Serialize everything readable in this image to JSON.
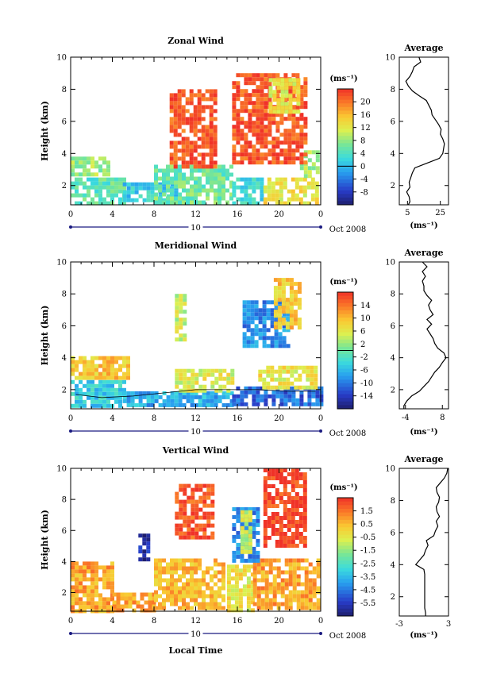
{
  "chart_data": [
    {
      "type": "heatmap",
      "title": "Zonal Wind",
      "ylabel": "Height (km)",
      "xticks": [
        "0",
        "4",
        "8",
        "12",
        "16",
        "20",
        "0"
      ],
      "xlim": [
        0,
        24
      ],
      "ylim": [
        0.8,
        10
      ],
      "yticks": [
        "2",
        "4",
        "6",
        "8",
        "10"
      ],
      "date_label": "10",
      "date_suffix": "Oct 2008",
      "colorbar": {
        "unit": "(ms⁻¹)",
        "ticks": [
          "20",
          "16",
          "12",
          "8",
          "4",
          "0",
          "-4",
          "-8"
        ],
        "vmin": -10,
        "vmax": 22
      },
      "regions": [
        {
          "x0": 0,
          "x1": 3.6,
          "y0": 2.6,
          "y1": 3.8,
          "v": 8
        },
        {
          "x0": 0,
          "x1": 5,
          "y0": 0.9,
          "y1": 2.5,
          "v": 5
        },
        {
          "x0": 5,
          "x1": 10,
          "y0": 1.0,
          "y1": 2.2,
          "v": 2
        },
        {
          "x0": 8,
          "x1": 15.5,
          "y0": 1.0,
          "y1": 3.3,
          "v": 6
        },
        {
          "x0": 15.5,
          "x1": 18.5,
          "y0": 1.0,
          "y1": 2.5,
          "v": 3
        },
        {
          "x0": 18.5,
          "x1": 23.8,
          "y0": 1.0,
          "y1": 2.5,
          "v": 12
        },
        {
          "x0": 22,
          "x1": 23.9,
          "y0": 2.5,
          "y1": 4.2,
          "v": 8
        },
        {
          "x0": 9.5,
          "x1": 14,
          "y0": 3.3,
          "y1": 8.0,
          "v": 20
        },
        {
          "x0": 15.5,
          "x1": 22.5,
          "y0": 3.5,
          "y1": 9.0,
          "v": 20
        },
        {
          "x0": 19,
          "x1": 22,
          "y0": 6.5,
          "y1": 8.7,
          "v": 12
        }
      ],
      "zero_contour": [],
      "profile": {
        "title": "Average",
        "xlabel": "(ms⁻¹)",
        "xticks": [
          "5",
          "25"
        ],
        "xlim": [
          0,
          30
        ],
        "height": [
          0.8,
          1.0,
          1.3,
          1.6,
          1.9,
          2.2,
          2.5,
          2.8,
          3.1,
          3.4,
          3.7,
          4.0,
          4.3,
          4.6,
          4.9,
          5.2,
          5.5,
          5.8,
          6.1,
          6.4,
          6.7,
          7.0,
          7.3,
          7.6,
          7.9,
          8.2,
          8.5,
          8.8,
          9.1,
          9.4,
          9.7,
          10.0
        ],
        "value": [
          5.5,
          6.5,
          6.0,
          4.5,
          6.5,
          6.0,
          7.0,
          8.0,
          9.5,
          17.0,
          24.5,
          26.5,
          27.0,
          27.5,
          26.5,
          25.0,
          25.5,
          24.0,
          22.0,
          20.0,
          19.5,
          18.0,
          16.5,
          12.0,
          8.0,
          5.5,
          4.0,
          6.5,
          8.0,
          9.0,
          13.0,
          12.0
        ]
      }
    },
    {
      "type": "heatmap",
      "title": "Meridional Wind",
      "ylabel": "Height (km)",
      "xticks": [
        "0",
        "4",
        "8",
        "12",
        "16",
        "20",
        "0"
      ],
      "xlim": [
        0,
        24
      ],
      "ylim": [
        0.8,
        10
      ],
      "yticks": [
        "2",
        "4",
        "6",
        "8",
        "10"
      ],
      "date_label": "10",
      "date_suffix": "Oct 2008",
      "colorbar": {
        "unit": "(ms⁻¹)",
        "ticks": [
          "14",
          "10",
          "6",
          "2",
          "-2",
          "-6",
          "-10",
          "-14"
        ],
        "vmin": -16,
        "vmax": 16
      },
      "regions": [
        {
          "x0": 0,
          "x1": 5.5,
          "y0": 2.7,
          "y1": 4.1,
          "v": 8
        },
        {
          "x0": 0,
          "x1": 5,
          "y0": 1.0,
          "y1": 2.6,
          "v": -4
        },
        {
          "x0": 5,
          "x1": 15.5,
          "y0": 1.0,
          "y1": 1.9,
          "v": -6
        },
        {
          "x0": 10,
          "x1": 15.5,
          "y0": 1.9,
          "y1": 3.3,
          "v": 5
        },
        {
          "x0": 15.5,
          "x1": 23.9,
          "y0": 1.0,
          "y1": 2.2,
          "v": -10
        },
        {
          "x0": 18,
          "x1": 23.5,
          "y0": 2.2,
          "y1": 3.5,
          "v": 6
        },
        {
          "x0": 16.5,
          "x1": 21,
          "y0": 4.8,
          "y1": 7.6,
          "v": -8
        },
        {
          "x0": 19.5,
          "x1": 22,
          "y0": 5.8,
          "y1": 9.0,
          "v": 8
        },
        {
          "x0": 10,
          "x1": 10.8,
          "y0": 5.2,
          "y1": 8.0,
          "v": 4
        }
      ],
      "zero_contour": [
        [
          0.5,
          1.7
        ],
        [
          3,
          1.5
        ],
        [
          6,
          1.6
        ],
        [
          9,
          1.8
        ],
        [
          12,
          2.0
        ],
        [
          15,
          2.0
        ],
        [
          18,
          2.0
        ],
        [
          21,
          1.9
        ],
        [
          23.5,
          1.9
        ]
      ],
      "profile": {
        "title": "Average",
        "xlabel": "(ms⁻¹)",
        "xticks": [
          "-4",
          "8"
        ],
        "xlim": [
          -6,
          10
        ],
        "height": [
          0.8,
          1.0,
          1.3,
          1.6,
          1.9,
          2.2,
          2.5,
          2.8,
          3.1,
          3.4,
          3.7,
          4.0,
          4.3,
          4.6,
          4.9,
          5.2,
          5.5,
          5.8,
          6.1,
          6.4,
          6.7,
          7.0,
          7.3,
          7.6,
          7.9,
          8.2,
          8.5,
          8.8,
          9.1,
          9.4,
          9.7,
          10.0
        ],
        "value": [
          -4.5,
          -4.5,
          -3.5,
          -2.0,
          0.5,
          2.0,
          3.5,
          4.5,
          5.5,
          7.0,
          8.0,
          9.2,
          8.5,
          6.5,
          5.5,
          5.0,
          4.0,
          3.0,
          4.5,
          3.0,
          5.0,
          4.0,
          3.5,
          4.5,
          3.0,
          2.0,
          2.0,
          1.5,
          2.5,
          1.5,
          3.0,
          1.5
        ]
      }
    },
    {
      "type": "heatmap",
      "title": "Vertical Wind",
      "ylabel": "Height (km)",
      "xlabel": "Local Time",
      "xticks": [
        "0",
        "4",
        "8",
        "12",
        "16",
        "20",
        "0"
      ],
      "xlim": [
        0,
        24
      ],
      "ylim": [
        0.8,
        10
      ],
      "yticks": [
        "2",
        "4",
        "6",
        "8",
        "10"
      ],
      "date_label": "10",
      "date_suffix": "Oct 2008",
      "colorbar": {
        "unit": "(ms⁻¹)",
        "ticks": [
          "1.5",
          "0.5",
          "-0.5",
          "-1.5",
          "-2.5",
          "-3.5",
          "-4.5",
          "-5.5"
        ],
        "vmin": -6,
        "vmax": 2
      },
      "regions": [
        {
          "x0": 0,
          "x1": 4,
          "y0": 0.9,
          "y1": 4.0,
          "v": 0.5
        },
        {
          "x0": 4,
          "x1": 8,
          "y0": 0.9,
          "y1": 2.0,
          "v": 0.5
        },
        {
          "x0": 8,
          "x1": 14.5,
          "y0": 0.9,
          "y1": 4.2,
          "v": 0.2
        },
        {
          "x0": 15,
          "x1": 17.5,
          "y0": 0.9,
          "y1": 3.8,
          "v": -0.5
        },
        {
          "x0": 17.5,
          "x1": 23.9,
          "y0": 0.9,
          "y1": 4.2,
          "v": 0.5
        },
        {
          "x0": 6.5,
          "x1": 7.3,
          "y0": 4.2,
          "y1": 5.8,
          "v": -5.5
        },
        {
          "x0": 10,
          "x1": 13.5,
          "y0": 5.5,
          "y1": 9.0,
          "v": 1.5
        },
        {
          "x0": 15.5,
          "x1": 17.8,
          "y0": 4.0,
          "y1": 7.5,
          "v": -4.0
        },
        {
          "x0": 16.3,
          "x1": 17.3,
          "y0": 4.5,
          "y1": 7.3,
          "v": -1.0
        },
        {
          "x0": 18.5,
          "x1": 22.5,
          "y0": 5.0,
          "y1": 10.0,
          "v": 1.8
        }
      ],
      "zero_contour": [],
      "profile": {
        "title": "Average",
        "xlabel": "(ms⁻¹)",
        "xticks": [
          "-3",
          "3"
        ],
        "xlim": [
          -3,
          3
        ],
        "height": [
          0.8,
          1.0,
          1.3,
          1.6,
          1.9,
          2.2,
          2.5,
          2.8,
          3.1,
          3.4,
          3.7,
          4.0,
          4.3,
          4.6,
          4.9,
          5.2,
          5.5,
          5.8,
          6.1,
          6.4,
          6.7,
          7.0,
          7.3,
          7.6,
          7.9,
          8.2,
          8.5,
          8.8,
          9.1,
          9.4,
          9.7,
          10.0
        ],
        "value": [
          0.2,
          0.2,
          0.1,
          0.1,
          0.1,
          0.1,
          0.1,
          0.1,
          0.1,
          0.1,
          0.0,
          -1.0,
          -0.5,
          0.0,
          0.2,
          0.5,
          0.3,
          1.2,
          1.4,
          1.7,
          1.5,
          1.9,
          1.6,
          1.5,
          1.8,
          1.9,
          1.6,
          1.5,
          2.0,
          2.5,
          2.8,
          2.9
        ]
      }
    }
  ]
}
